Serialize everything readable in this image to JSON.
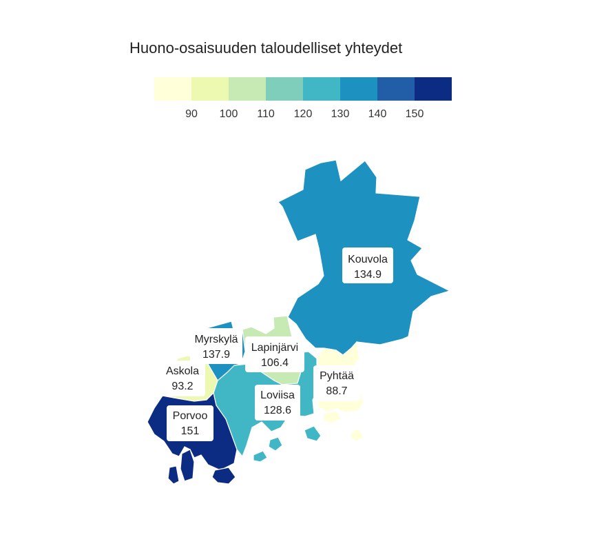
{
  "title": "Huono-osaisuuden taloudelliset yhteydet",
  "legend": {
    "colors": [
      "#ffffd9",
      "#edf8b1",
      "#c7e9b4",
      "#7fcdbb",
      "#41b6c4",
      "#1d91c0",
      "#225ea8",
      "#0c2c84"
    ],
    "ticks": [
      "90",
      "100",
      "110",
      "120",
      "130",
      "140",
      "150"
    ]
  },
  "regions": [
    {
      "name": "Kouvola",
      "value": "134.9",
      "color": "#1d91c0"
    },
    {
      "name": "Myrskylä",
      "value": "137.9",
      "color": "#1d91c0"
    },
    {
      "name": "Lapinjärvi",
      "value": "106.4",
      "color": "#c7e9b4"
    },
    {
      "name": "Askola",
      "value": "93.2",
      "color": "#edf8b1"
    },
    {
      "name": "Pyhtää",
      "value": "88.7",
      "color": "#ffffd9"
    },
    {
      "name": "Loviisa",
      "value": "128.6",
      "color": "#41b6c4"
    },
    {
      "name": "Porvoo",
      "value": "151",
      "color": "#0c2c84"
    }
  ]
}
